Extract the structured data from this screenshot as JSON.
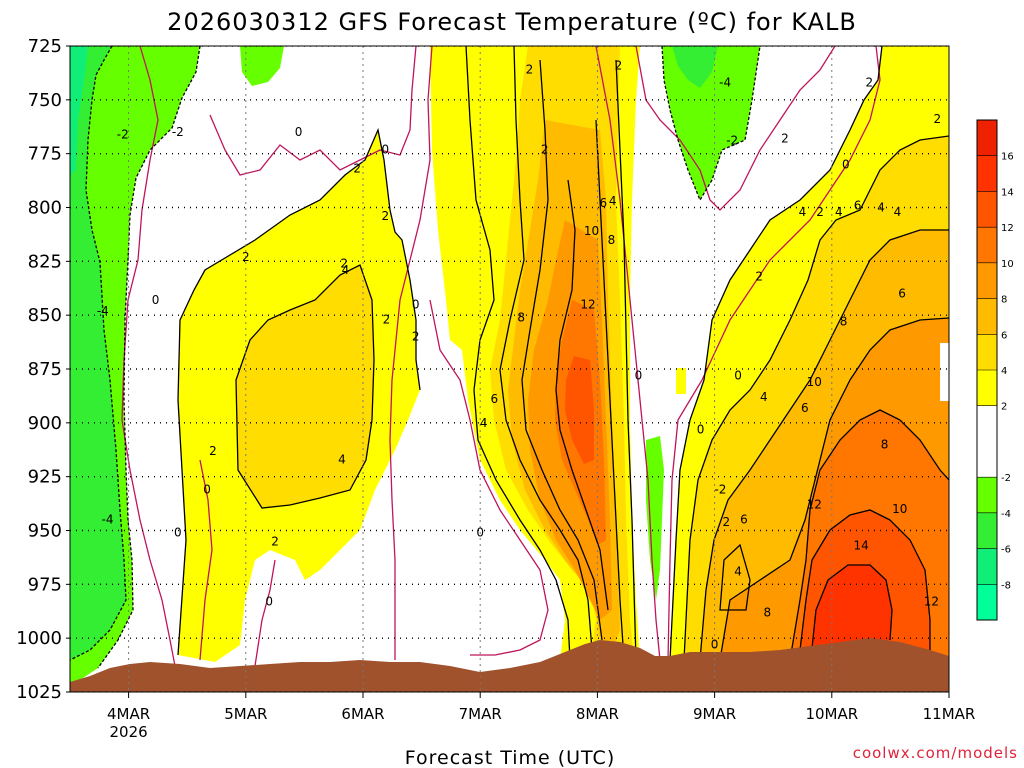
{
  "chart_data": {
    "type": "heatmap",
    "title": "2026030312 GFS Forecast Temperature (ºC) for KALB",
    "xlabel": "Forecast Time (UTC)",
    "ylabel": "",
    "credit": "coolwx.com/models",
    "x_ticks": [
      {
        "label": "4MAR",
        "sub": "2026",
        "day": 4
      },
      {
        "label": "5MAR",
        "sub": "",
        "day": 5
      },
      {
        "label": "6MAR",
        "sub": "",
        "day": 6
      },
      {
        "label": "7MAR",
        "sub": "",
        "day": 7
      },
      {
        "label": "8MAR",
        "sub": "",
        "day": 8
      },
      {
        "label": "9MAR",
        "sub": "",
        "day": 9
      },
      {
        "label": "10MAR",
        "sub": "",
        "day": 10
      },
      {
        "label": "11MAR",
        "sub": "",
        "day": 11
      }
    ],
    "xlim_day": [
      3.5,
      11.0
    ],
    "y_ticks": [
      725,
      750,
      775,
      800,
      825,
      850,
      875,
      900,
      925,
      950,
      975,
      1000,
      1025
    ],
    "ylim_hpa": [
      1025,
      725
    ],
    "grid": true,
    "colorbar": {
      "placement": "right",
      "bins": [
        {
          "lo": -10,
          "hi": -8,
          "color": "#00ff99"
        },
        {
          "lo": -8,
          "hi": -6,
          "color": "#11ee77"
        },
        {
          "lo": -6,
          "hi": -4,
          "color": "#33ee33"
        },
        {
          "lo": -4,
          "hi": -2,
          "color": "#66ff00"
        },
        {
          "lo": -2,
          "hi": 2,
          "color": "#ffffff"
        },
        {
          "lo": 2,
          "hi": 4,
          "color": "#ffff00"
        },
        {
          "lo": 4,
          "hi": 6,
          "color": "#ffdd00"
        },
        {
          "lo": 6,
          "hi": 8,
          "color": "#ffbb00"
        },
        {
          "lo": 8,
          "hi": 10,
          "color": "#ff9900"
        },
        {
          "lo": 10,
          "hi": 12,
          "color": "#ff7700"
        },
        {
          "lo": 12,
          "hi": 14,
          "color": "#ff5500"
        },
        {
          "lo": 14,
          "hi": 16,
          "color": "#ff3300"
        },
        {
          "lo": 16,
          "hi": 18,
          "color": "#ee2200"
        }
      ],
      "labels": [
        16,
        14,
        12,
        10,
        8,
        6,
        4,
        2,
        -2,
        -4,
        -6,
        -8
      ]
    },
    "contour_labels": [
      {
        "day": 7.92,
        "hpa": 845,
        "text": "12"
      },
      {
        "day": 10.25,
        "hpa": 957,
        "text": "14"
      },
      {
        "day": 7.35,
        "hpa": 851,
        "text": "8"
      },
      {
        "day": 7.12,
        "hpa": 889,
        "text": "6"
      },
      {
        "day": 8.05,
        "hpa": 798,
        "text": "6"
      },
      {
        "day": 8.12,
        "hpa": 815,
        "text": "8"
      },
      {
        "day": 7.95,
        "hpa": 811,
        "text": "10"
      },
      {
        "day": 8.13,
        "hpa": 797,
        "text": "4"
      },
      {
        "day": 9.85,
        "hpa": 881,
        "text": "10"
      },
      {
        "day": 9.85,
        "hpa": 938,
        "text": "12"
      },
      {
        "day": 10.58,
        "hpa": 940,
        "text": "10"
      },
      {
        "day": 10.85,
        "hpa": 983,
        "text": "12"
      },
      {
        "day": 10.1,
        "hpa": 853,
        "text": "8"
      },
      {
        "day": 10.45,
        "hpa": 910,
        "text": "8"
      },
      {
        "day": 9.77,
        "hpa": 893,
        "text": "6"
      },
      {
        "day": 10.6,
        "hpa": 840,
        "text": "6"
      },
      {
        "day": 9.42,
        "hpa": 888,
        "text": "4"
      },
      {
        "day": 9.45,
        "hpa": 988,
        "text": "8"
      },
      {
        "day": 10.42,
        "hpa": 800,
        "text": "4"
      },
      {
        "day": 10.06,
        "hpa": 802,
        "text": "4"
      },
      {
        "day": 10.22,
        "hpa": 799,
        "text": "6"
      },
      {
        "day": 10.56,
        "hpa": 802,
        "text": "4"
      },
      {
        "day": 9.75,
        "hpa": 802,
        "text": "4"
      },
      {
        "day": 9.9,
        "hpa": 802,
        "text": "2"
      },
      {
        "day": 9.38,
        "hpa": 832,
        "text": "2"
      },
      {
        "day": 9.25,
        "hpa": 945,
        "text": "6"
      },
      {
        "day": 9.2,
        "hpa": 969,
        "text": "4"
      },
      {
        "day": 9.1,
        "hpa": 946,
        "text": "2"
      },
      {
        "day": 9.6,
        "hpa": 768,
        "text": "2"
      },
      {
        "day": 10.9,
        "hpa": 759,
        "text": "2"
      },
      {
        "day": 10.32,
        "hpa": 742,
        "text": "2"
      },
      {
        "day": 10.12,
        "hpa": 780,
        "text": "0"
      },
      {
        "day": 9.09,
        "hpa": 742,
        "text": "-4"
      },
      {
        "day": 9.15,
        "hpa": 769,
        "text": "-2"
      },
      {
        "day": 9.05,
        "hpa": 931,
        "text": "-2"
      },
      {
        "day": 9.0,
        "hpa": 1003,
        "text": "0"
      },
      {
        "day": 9.2,
        "hpa": 878,
        "text": "0"
      },
      {
        "day": 8.88,
        "hpa": 903,
        "text": "0"
      },
      {
        "day": 8.35,
        "hpa": 878,
        "text": "0"
      },
      {
        "day": 8.18,
        "hpa": 734,
        "text": "2"
      },
      {
        "day": 7.42,
        "hpa": 736,
        "text": "2"
      },
      {
        "day": 7.55,
        "hpa": 773,
        "text": "2"
      },
      {
        "day": 7.03,
        "hpa": 900,
        "text": "4"
      },
      {
        "day": 7.0,
        "hpa": 951,
        "text": "0"
      },
      {
        "day": 6.2,
        "hpa": 852,
        "text": "2"
      },
      {
        "day": 6.45,
        "hpa": 860,
        "text": "2"
      },
      {
        "day": 6.45,
        "hpa": 845,
        "text": "0"
      },
      {
        "day": 5.84,
        "hpa": 826,
        "text": "2"
      },
      {
        "day": 5.95,
        "hpa": 782,
        "text": "2"
      },
      {
        "day": 6.19,
        "hpa": 804,
        "text": "2"
      },
      {
        "day": 6.19,
        "hpa": 773,
        "text": "0"
      },
      {
        "day": 5.45,
        "hpa": 765,
        "text": "0"
      },
      {
        "day": 5.0,
        "hpa": 823,
        "text": "2"
      },
      {
        "day": 5.85,
        "hpa": 829,
        "text": "4"
      },
      {
        "day": 5.82,
        "hpa": 917,
        "text": "4"
      },
      {
        "day": 4.72,
        "hpa": 913,
        "text": "2"
      },
      {
        "day": 4.67,
        "hpa": 931,
        "text": "0"
      },
      {
        "day": 4.42,
        "hpa": 951,
        "text": "0"
      },
      {
        "day": 5.25,
        "hpa": 955,
        "text": "2"
      },
      {
        "day": 5.2,
        "hpa": 983,
        "text": "0"
      },
      {
        "day": 4.23,
        "hpa": 843,
        "text": "0"
      },
      {
        "day": 3.78,
        "hpa": 848,
        "text": "-4"
      },
      {
        "day": 3.82,
        "hpa": 945,
        "text": "-4"
      },
      {
        "day": 3.95,
        "hpa": 766,
        "text": "-2"
      },
      {
        "day": 4.42,
        "hpa": 765,
        "text": "-2"
      }
    ]
  }
}
